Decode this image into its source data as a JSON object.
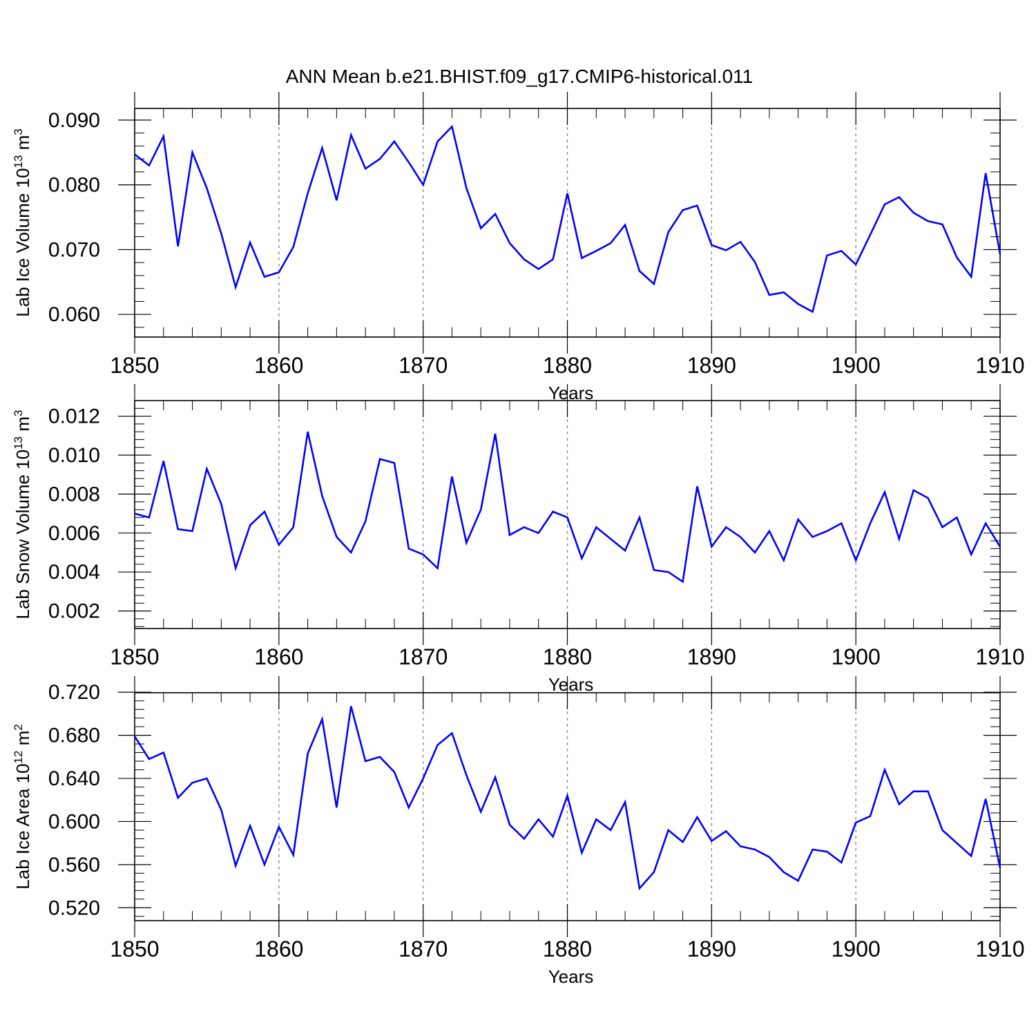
{
  "title": "ANN Mean b.e21.BHIST.f09_g17.CMIP6-historical.011",
  "colors": {
    "line": "#0000ff",
    "axis": "#000000",
    "grid": "#888888"
  },
  "chart_data": [
    {
      "type": "line",
      "ylabel": "Lab Ice Volume 10",
      "ylabel_exp": "13",
      "ylabel_unit": "m",
      "ylabel_unit_exp": "3",
      "xlabel": "Years",
      "xlim": [
        1850,
        1910
      ],
      "ylim": [
        0.0565,
        0.0918
      ],
      "xticks": [
        1850,
        1860,
        1870,
        1880,
        1890,
        1900,
        1910
      ],
      "yticks": [
        0.06,
        0.07,
        0.08,
        0.09
      ],
      "ytick_labels": [
        "0.060",
        "0.070",
        "0.080",
        "0.090"
      ],
      "grid": "vertical dashed at major x ticks",
      "series": [
        {
          "x": [
            1850,
            1851,
            1852,
            1853,
            1854,
            1855,
            1856,
            1857,
            1858,
            1859,
            1860,
            1861,
            1862,
            1863,
            1864,
            1865,
            1866,
            1867,
            1868,
            1869,
            1870,
            1871,
            1872,
            1873,
            1874,
            1875,
            1876,
            1877,
            1878,
            1879,
            1880,
            1881,
            1882,
            1883,
            1884,
            1885,
            1886,
            1887,
            1888,
            1889,
            1890,
            1891,
            1892,
            1893,
            1894,
            1895,
            1896,
            1897,
            1898,
            1899,
            1900,
            1901,
            1902,
            1903,
            1904,
            1905,
            1906,
            1907,
            1908,
            1909,
            1910
          ],
          "values": [
            0.0847,
            0.083,
            0.0875,
            0.0705,
            0.085,
            0.0795,
            0.0725,
            0.0642,
            0.0711,
            0.0658,
            0.0665,
            0.0704,
            0.0787,
            0.0857,
            0.0776,
            0.0877,
            0.0825,
            0.084,
            0.0867,
            0.0835,
            0.08,
            0.0867,
            0.089,
            0.0795,
            0.0733,
            0.0755,
            0.071,
            0.0685,
            0.067,
            0.0685,
            0.0787,
            0.0687,
            0.0698,
            0.071,
            0.0738,
            0.0667,
            0.0647,
            0.0727,
            0.0761,
            0.0768,
            0.0707,
            0.0699,
            0.0712,
            0.0681,
            0.063,
            0.0634,
            0.0616,
            0.0604,
            0.0691,
            0.0698,
            0.0677,
            0.0723,
            0.077,
            0.0781,
            0.0757,
            0.0744,
            0.0739,
            0.0688,
            0.0658,
            0.0818,
            0.0693
          ]
        }
      ]
    },
    {
      "type": "line",
      "ylabel": "Lab Snow Volume 10",
      "ylabel_exp": "13",
      "ylabel_unit": "m",
      "ylabel_unit_exp": "3",
      "xlabel": "Years",
      "xlim": [
        1850,
        1910
      ],
      "ylim": [
        0.0011,
        0.0128
      ],
      "xticks": [
        1850,
        1860,
        1870,
        1880,
        1890,
        1900,
        1910
      ],
      "yticks": [
        0.002,
        0.004,
        0.006,
        0.008,
        0.01,
        0.012
      ],
      "ytick_labels": [
        "0.002",
        "0.004",
        "0.006",
        "0.008",
        "0.010",
        "0.012"
      ],
      "grid": "vertical dashed at major x ticks",
      "series": [
        {
          "x": [
            1850,
            1851,
            1852,
            1853,
            1854,
            1855,
            1856,
            1857,
            1858,
            1859,
            1860,
            1861,
            1862,
            1863,
            1864,
            1865,
            1866,
            1867,
            1868,
            1869,
            1870,
            1871,
            1872,
            1873,
            1874,
            1875,
            1876,
            1877,
            1878,
            1879,
            1880,
            1881,
            1882,
            1883,
            1884,
            1885,
            1886,
            1887,
            1888,
            1889,
            1890,
            1891,
            1892,
            1893,
            1894,
            1895,
            1896,
            1897,
            1898,
            1899,
            1900,
            1901,
            1902,
            1903,
            1904,
            1905,
            1906,
            1907,
            1908,
            1909,
            1910
          ],
          "values": [
            0.007,
            0.0068,
            0.0097,
            0.0062,
            0.0061,
            0.0093,
            0.0075,
            0.0042,
            0.0064,
            0.0071,
            0.0054,
            0.0063,
            0.0112,
            0.0079,
            0.0058,
            0.005,
            0.0066,
            0.0098,
            0.0096,
            0.0052,
            0.0049,
            0.0042,
            0.0089,
            0.0055,
            0.0072,
            0.0111,
            0.0059,
            0.0063,
            0.006,
            0.0071,
            0.0068,
            0.0047,
            0.0063,
            0.0057,
            0.0051,
            0.0068,
            0.0041,
            0.004,
            0.0035,
            0.0084,
            0.0053,
            0.0063,
            0.0058,
            0.005,
            0.0061,
            0.0046,
            0.0067,
            0.0058,
            0.0061,
            0.0065,
            0.0046,
            0.0065,
            0.0081,
            0.0057,
            0.0082,
            0.0078,
            0.0063,
            0.0068,
            0.0049,
            0.0065,
            0.0053
          ]
        }
      ]
    },
    {
      "type": "line",
      "ylabel": "Lab Ice Area 10",
      "ylabel_exp": "12",
      "ylabel_unit": "m",
      "ylabel_unit_exp": "2",
      "xlabel": "Years",
      "xlim": [
        1850,
        1910
      ],
      "ylim": [
        0.508,
        0.7195
      ],
      "xticks": [
        1850,
        1860,
        1870,
        1880,
        1890,
        1900,
        1910
      ],
      "yticks": [
        0.52,
        0.56,
        0.6,
        0.64,
        0.68,
        0.72
      ],
      "ytick_labels": [
        "0.520",
        "0.560",
        "0.600",
        "0.640",
        "0.680",
        "0.720"
      ],
      "grid": "vertical dashed at major x ticks",
      "series": [
        {
          "x": [
            1850,
            1851,
            1852,
            1853,
            1854,
            1855,
            1856,
            1857,
            1858,
            1859,
            1860,
            1861,
            1862,
            1863,
            1864,
            1865,
            1866,
            1867,
            1868,
            1869,
            1870,
            1871,
            1872,
            1873,
            1874,
            1875,
            1876,
            1877,
            1878,
            1879,
            1880,
            1881,
            1882,
            1883,
            1884,
            1885,
            1886,
            1887,
            1888,
            1889,
            1890,
            1891,
            1892,
            1893,
            1894,
            1895,
            1896,
            1897,
            1898,
            1899,
            1900,
            1901,
            1902,
            1903,
            1904,
            1905,
            1906,
            1907,
            1908,
            1909,
            1910
          ],
          "values": [
            0.679,
            0.658,
            0.664,
            0.622,
            0.636,
            0.64,
            0.611,
            0.559,
            0.596,
            0.56,
            0.595,
            0.569,
            0.663,
            0.695,
            0.613,
            0.707,
            0.656,
            0.66,
            0.646,
            0.613,
            0.64,
            0.671,
            0.682,
            0.643,
            0.609,
            0.641,
            0.597,
            0.584,
            0.602,
            0.586,
            0.624,
            0.571,
            0.602,
            0.592,
            0.618,
            0.538,
            0.553,
            0.592,
            0.581,
            0.604,
            0.582,
            0.591,
            0.577,
            0.574,
            0.567,
            0.553,
            0.545,
            0.574,
            0.572,
            0.562,
            0.599,
            0.605,
            0.648,
            0.616,
            0.628,
            0.628,
            0.592,
            0.58,
            0.568,
            0.621,
            0.557
          ]
        }
      ]
    }
  ]
}
